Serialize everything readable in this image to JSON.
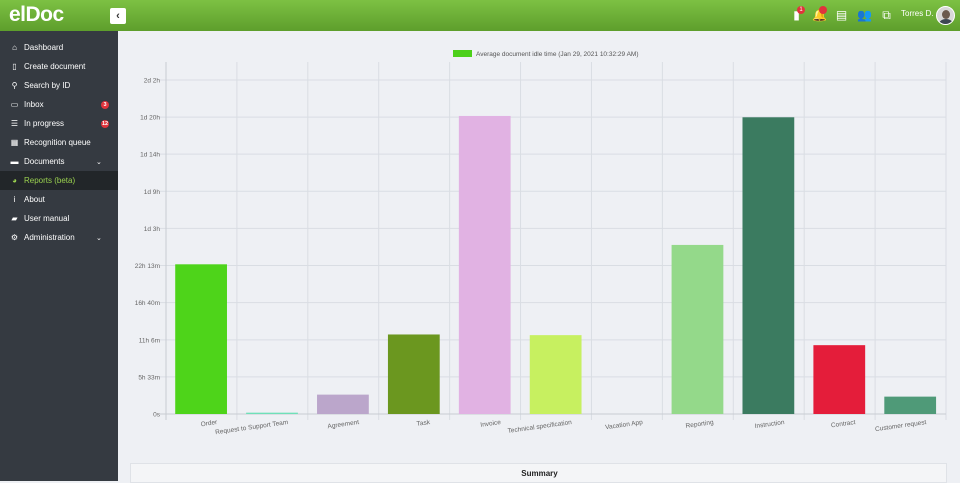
{
  "app": {
    "logo": "elDoc",
    "collapse_icon": "chevron-left-icon"
  },
  "topbar": {
    "icons": [
      {
        "name": "document-icon",
        "glyph": "▮",
        "badge": "1"
      },
      {
        "name": "bell-icon",
        "glyph": "🔔",
        "badge": ""
      },
      {
        "name": "clipboard-icon",
        "glyph": "▤",
        "badge": null
      },
      {
        "name": "users-icon",
        "glyph": "👥",
        "badge": null
      },
      {
        "name": "copy-icon",
        "glyph": "⧉",
        "badge": null
      }
    ],
    "user_name": "Torres D."
  },
  "sidebar": {
    "items": [
      {
        "label": "Dashboard",
        "icon": "home-icon",
        "glyph": "⌂",
        "badge": null,
        "chevron": false,
        "active": false
      },
      {
        "label": "Create document",
        "icon": "file-icon",
        "glyph": "▯",
        "badge": null,
        "chevron": false,
        "active": false
      },
      {
        "label": "Search by ID",
        "icon": "search-icon",
        "glyph": "⚲",
        "badge": null,
        "chevron": false,
        "active": false
      },
      {
        "label": "Inbox",
        "icon": "inbox-icon",
        "glyph": "▭",
        "badge": "3",
        "chevron": false,
        "active": false
      },
      {
        "label": "In progress",
        "icon": "list-icon",
        "glyph": "☰",
        "badge": "12",
        "chevron": false,
        "active": false
      },
      {
        "label": "Recognition queue",
        "icon": "table-icon",
        "glyph": "▦",
        "badge": null,
        "chevron": false,
        "active": false
      },
      {
        "label": "Documents",
        "icon": "briefcase-icon",
        "glyph": "▬",
        "badge": null,
        "chevron": true,
        "active": false
      },
      {
        "label": "Reports (beta)",
        "icon": "pie-chart-icon",
        "glyph": "◕",
        "badge": null,
        "chevron": false,
        "active": true
      },
      {
        "label": "About",
        "icon": "info-icon",
        "glyph": "i",
        "badge": null,
        "chevron": false,
        "active": false
      },
      {
        "label": "User manual",
        "icon": "book-icon",
        "glyph": "▰",
        "badge": null,
        "chevron": false,
        "active": false
      },
      {
        "label": "Administration",
        "icon": "cogs-icon",
        "glyph": "⚙",
        "badge": null,
        "chevron": true,
        "active": false
      }
    ]
  },
  "chart_data": {
    "type": "bar",
    "legend": {
      "label": "Average document idle time (Jan 29, 2021 10:32:29 AM)",
      "color": "#4cd01a",
      "position": "top-center"
    },
    "y_ticks": [
      "0s",
      "5h 33m",
      "11h 6m",
      "16h 40m",
      "22h 13m",
      "1d 3h",
      "1d 9h",
      "1d 14h",
      "1d 20h",
      "2d 2h"
    ],
    "y_tick_hours": [
      0,
      5.55,
      11.1,
      16.67,
      22.22,
      27.77,
      33.33,
      38.88,
      44.43,
      49.98
    ],
    "ylim_hours": [
      0,
      49.98
    ],
    "y_unit": "hours",
    "grid": true,
    "categories": [
      "Order",
      "Request to Support Team",
      "Agreement",
      "Task",
      "Invoice",
      "Technical specification",
      "Vacation App",
      "Reporting",
      "Instruction",
      "Contract",
      "Customer request"
    ],
    "values_hours": [
      22.4,
      0.2,
      2.9,
      11.9,
      44.6,
      11.8,
      0,
      25.3,
      44.4,
      10.3,
      2.6
    ],
    "colors": [
      "#4ed41a",
      "#6fe0b8",
      "#bba6cb",
      "#6b971f",
      "#e1b2e3",
      "#c7f060",
      "#cccccc",
      "#94d98a",
      "#3b7b60",
      "#e41d3a",
      "#4f9a78"
    ]
  },
  "summary": {
    "title": "Summary"
  }
}
